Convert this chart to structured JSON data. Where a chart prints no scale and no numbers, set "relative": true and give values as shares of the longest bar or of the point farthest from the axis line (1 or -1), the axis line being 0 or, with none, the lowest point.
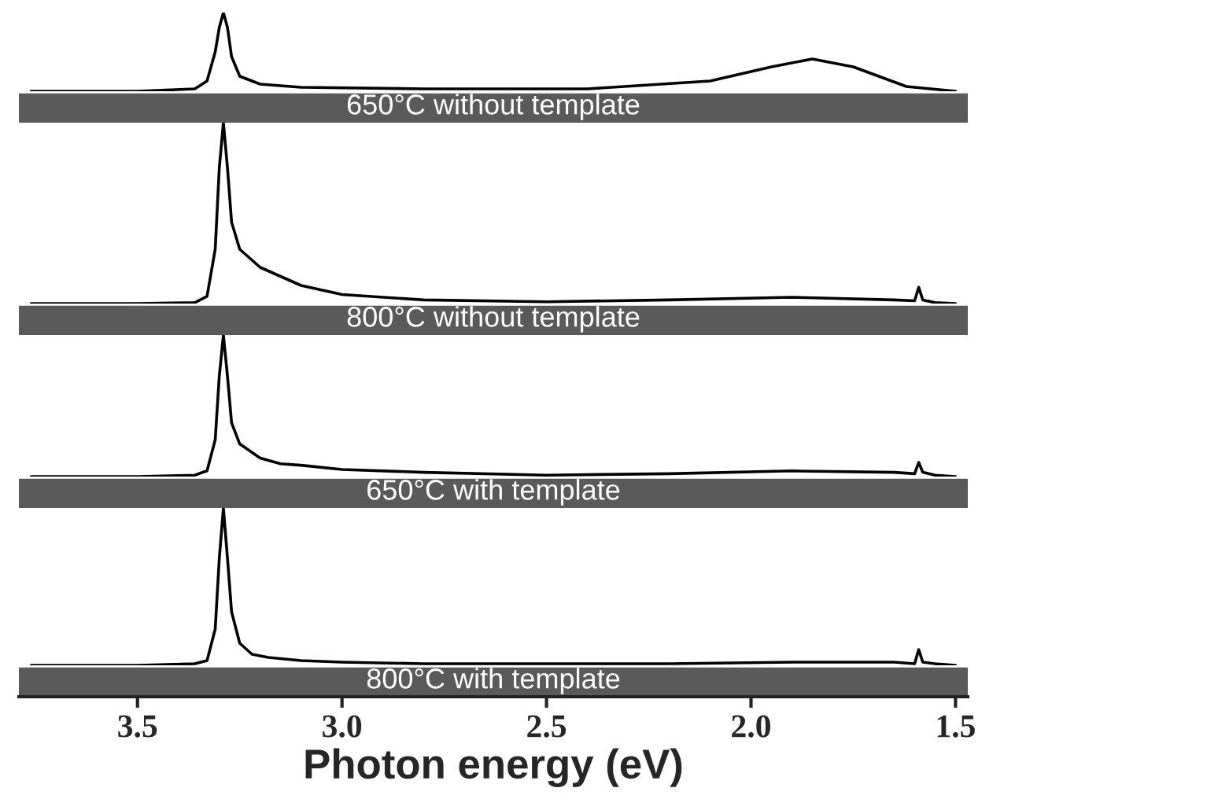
{
  "chart_data": [
    {
      "type": "area",
      "relative": true,
      "xlim": [
        3.79,
        1.47
      ],
      "tick_labels": false,
      "series": [
        {
          "name": "650°C without template",
          "color": "#ffffff",
          "x": [
            3.76,
            3.5,
            3.36,
            3.33,
            3.31,
            3.3,
            3.29,
            3.28,
            3.27,
            3.25,
            3.2,
            3.1,
            2.8,
            2.4,
            2.1,
            1.95,
            1.85,
            1.75,
            1.62,
            1.5
          ],
          "values": [
            0,
            0,
            0.03,
            0.13,
            0.5,
            0.81,
            1.0,
            0.81,
            0.44,
            0.19,
            0.09,
            0.05,
            0.03,
            0.03,
            0.13,
            0.31,
            0.41,
            0.31,
            0.06,
            0
          ]
        }
      ]
    },
    {
      "type": "area",
      "relative": true,
      "xlim": [
        3.79,
        1.47
      ],
      "tick_labels": false,
      "series": [
        {
          "name": "800°C without template",
          "color": "#ffffff",
          "x": [
            3.76,
            3.5,
            3.36,
            3.33,
            3.31,
            3.3,
            3.29,
            3.28,
            3.27,
            3.25,
            3.2,
            3.15,
            3.1,
            3.0,
            2.8,
            2.5,
            2.2,
            1.9,
            1.65,
            1.6,
            1.59,
            1.58,
            1.55,
            1.5
          ],
          "values": [
            0,
            0,
            0.005,
            0.04,
            0.3,
            0.75,
            1.0,
            0.75,
            0.45,
            0.3,
            0.2,
            0.15,
            0.1,
            0.05,
            0.02,
            0.01,
            0.02,
            0.035,
            0.02,
            0.015,
            0.09,
            0.02,
            0.005,
            0
          ]
        }
      ]
    },
    {
      "type": "area",
      "relative": true,
      "xlim": [
        3.79,
        1.47
      ],
      "tick_labels": false,
      "series": [
        {
          "name": "650°C with template",
          "color": "#ffffff",
          "x": [
            3.76,
            3.5,
            3.36,
            3.33,
            3.31,
            3.3,
            3.29,
            3.28,
            3.27,
            3.25,
            3.2,
            3.15,
            3.1,
            3.0,
            2.8,
            2.5,
            2.2,
            1.9,
            1.65,
            1.6,
            1.59,
            1.58,
            1.55,
            1.5
          ],
          "values": [
            0,
            0,
            0.01,
            0.04,
            0.26,
            0.71,
            1.0,
            0.71,
            0.38,
            0.23,
            0.13,
            0.09,
            0.08,
            0.05,
            0.03,
            0.01,
            0.02,
            0.04,
            0.03,
            0.02,
            0.1,
            0.03,
            0.01,
            0
          ]
        }
      ]
    },
    {
      "type": "area",
      "relative": true,
      "xlim": [
        3.79,
        1.47
      ],
      "tick_labels": "x",
      "xlabel": "Photon energy (eV)",
      "xticks": [
        {
          "value": 3.5,
          "label": "3.5"
        },
        {
          "value": 3.0,
          "label": "3.0"
        },
        {
          "value": 2.5,
          "label": "2.5"
        },
        {
          "value": 2.0,
          "label": "2.0"
        },
        {
          "value": 1.5,
          "label": "1.5"
        }
      ],
      "series": [
        {
          "name": "800°C with template",
          "color": "#ffffff",
          "x": [
            3.76,
            3.5,
            3.36,
            3.33,
            3.31,
            3.3,
            3.29,
            3.28,
            3.27,
            3.25,
            3.22,
            3.18,
            3.1,
            3.0,
            2.8,
            2.5,
            2.2,
            1.9,
            1.65,
            1.6,
            1.59,
            1.58,
            1.55,
            1.5
          ],
          "values": [
            0,
            0,
            0.01,
            0.03,
            0.23,
            0.68,
            1.0,
            0.68,
            0.34,
            0.14,
            0.07,
            0.05,
            0.03,
            0.02,
            0.01,
            0.01,
            0.01,
            0.02,
            0.02,
            0.01,
            0.1,
            0.02,
            0.01,
            0
          ]
        }
      ]
    }
  ]
}
